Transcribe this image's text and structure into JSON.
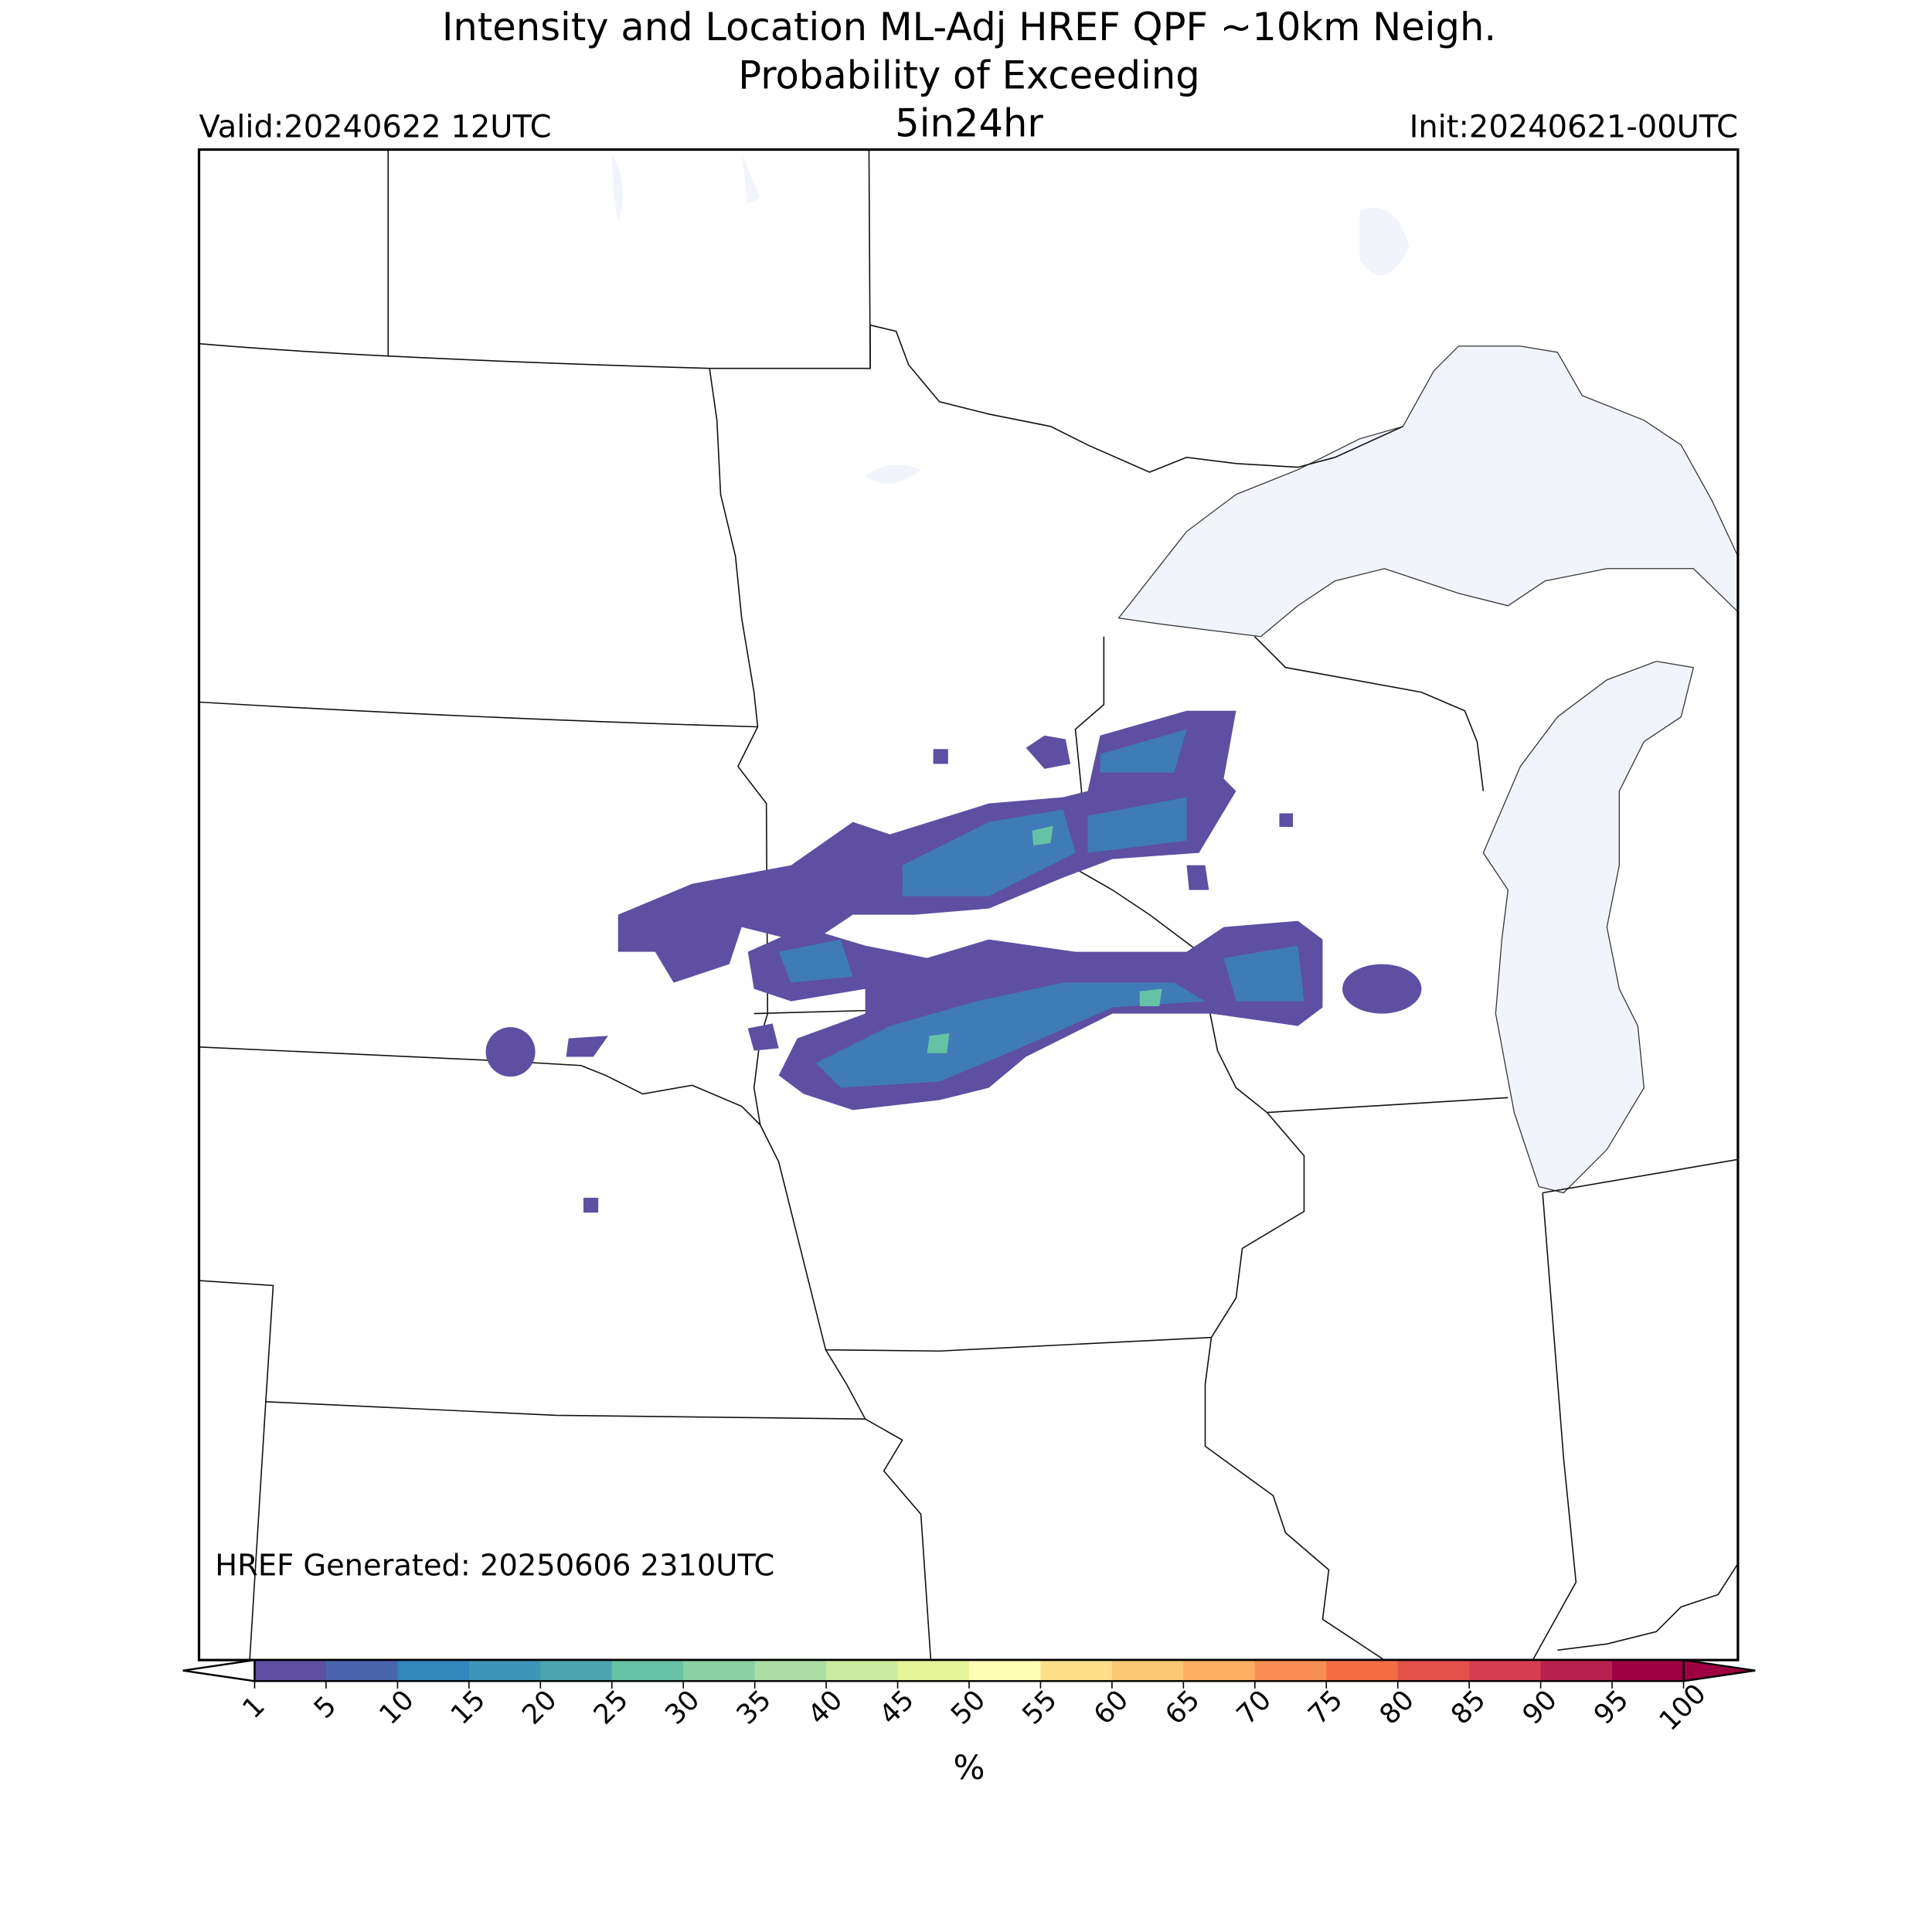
{
  "header": {
    "title_lines": [
      "Intensity and Location ML-Adj HREF QPF ~10km Neigh.",
      "Probability of Exceeding",
      "5in24hr"
    ],
    "valid": "Valid:20240622 12UTC",
    "init": "Init:20240621-00UTC"
  },
  "map": {
    "generated": "HREF Generated: 20250606 2310UTC"
  },
  "colorbar": {
    "ticks": [
      1,
      5,
      10,
      15,
      20,
      25,
      30,
      35,
      40,
      45,
      50,
      55,
      60,
      65,
      70,
      75,
      80,
      85,
      90,
      95,
      100
    ],
    "colors": [
      "#5e4fa2",
      "#4a64ad",
      "#3288bd",
      "#3d95b8",
      "#4ba5b1",
      "#66c2a5",
      "#89d0a4",
      "#abdda4",
      "#cdeb9e",
      "#e6f598",
      "#fefeb8",
      "#fee08b",
      "#fdc775",
      "#fdae61",
      "#f88e53",
      "#f46d43",
      "#e2514a",
      "#d53e4f",
      "#b8214f",
      "#9e0142"
    ],
    "under_color": "#ffffff",
    "over_color": "#9e0142",
    "label": "%"
  }
}
